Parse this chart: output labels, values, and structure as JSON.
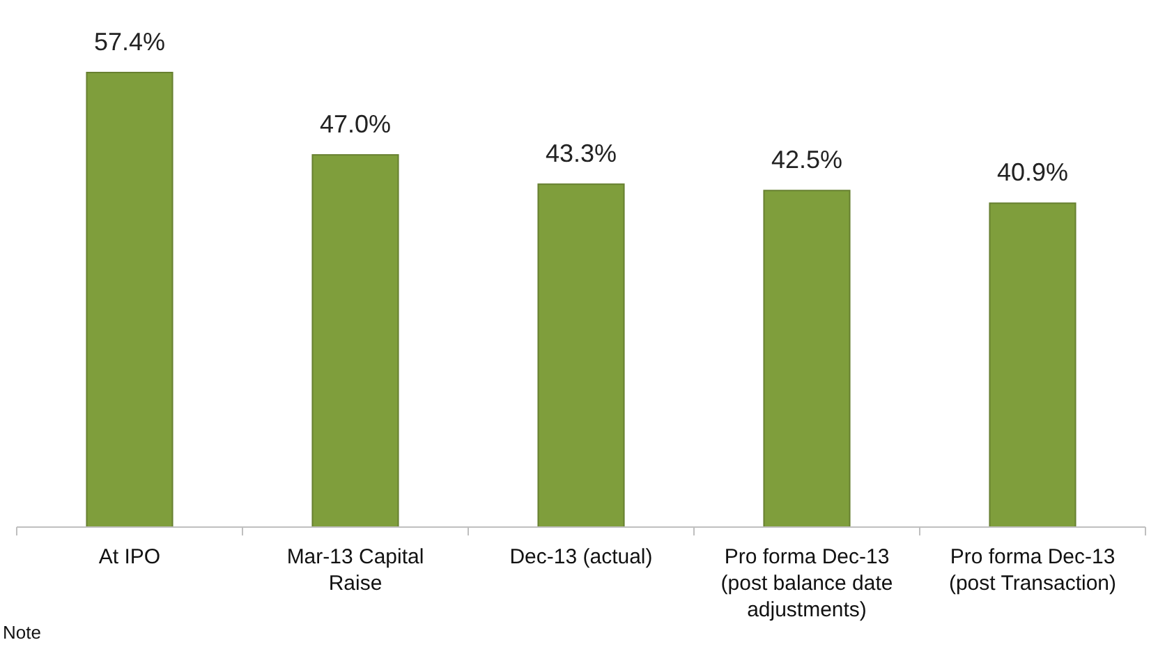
{
  "chart_data": {
    "type": "bar",
    "categories": [
      "At IPO",
      "Mar-13 Capital Raise",
      "Dec-13 (actual)",
      "Pro forma Dec-13 (post balance date adjustments)",
      "Pro forma Dec-13 (post Transaction)"
    ],
    "values": [
      57.4,
      47.0,
      43.3,
      42.5,
      40.9
    ],
    "value_labels": [
      "57.4%",
      "47.0%",
      "43.3%",
      "42.5%",
      "40.9%"
    ],
    "color": "#7f9e3c",
    "annotations": [
      "Note"
    ]
  }
}
